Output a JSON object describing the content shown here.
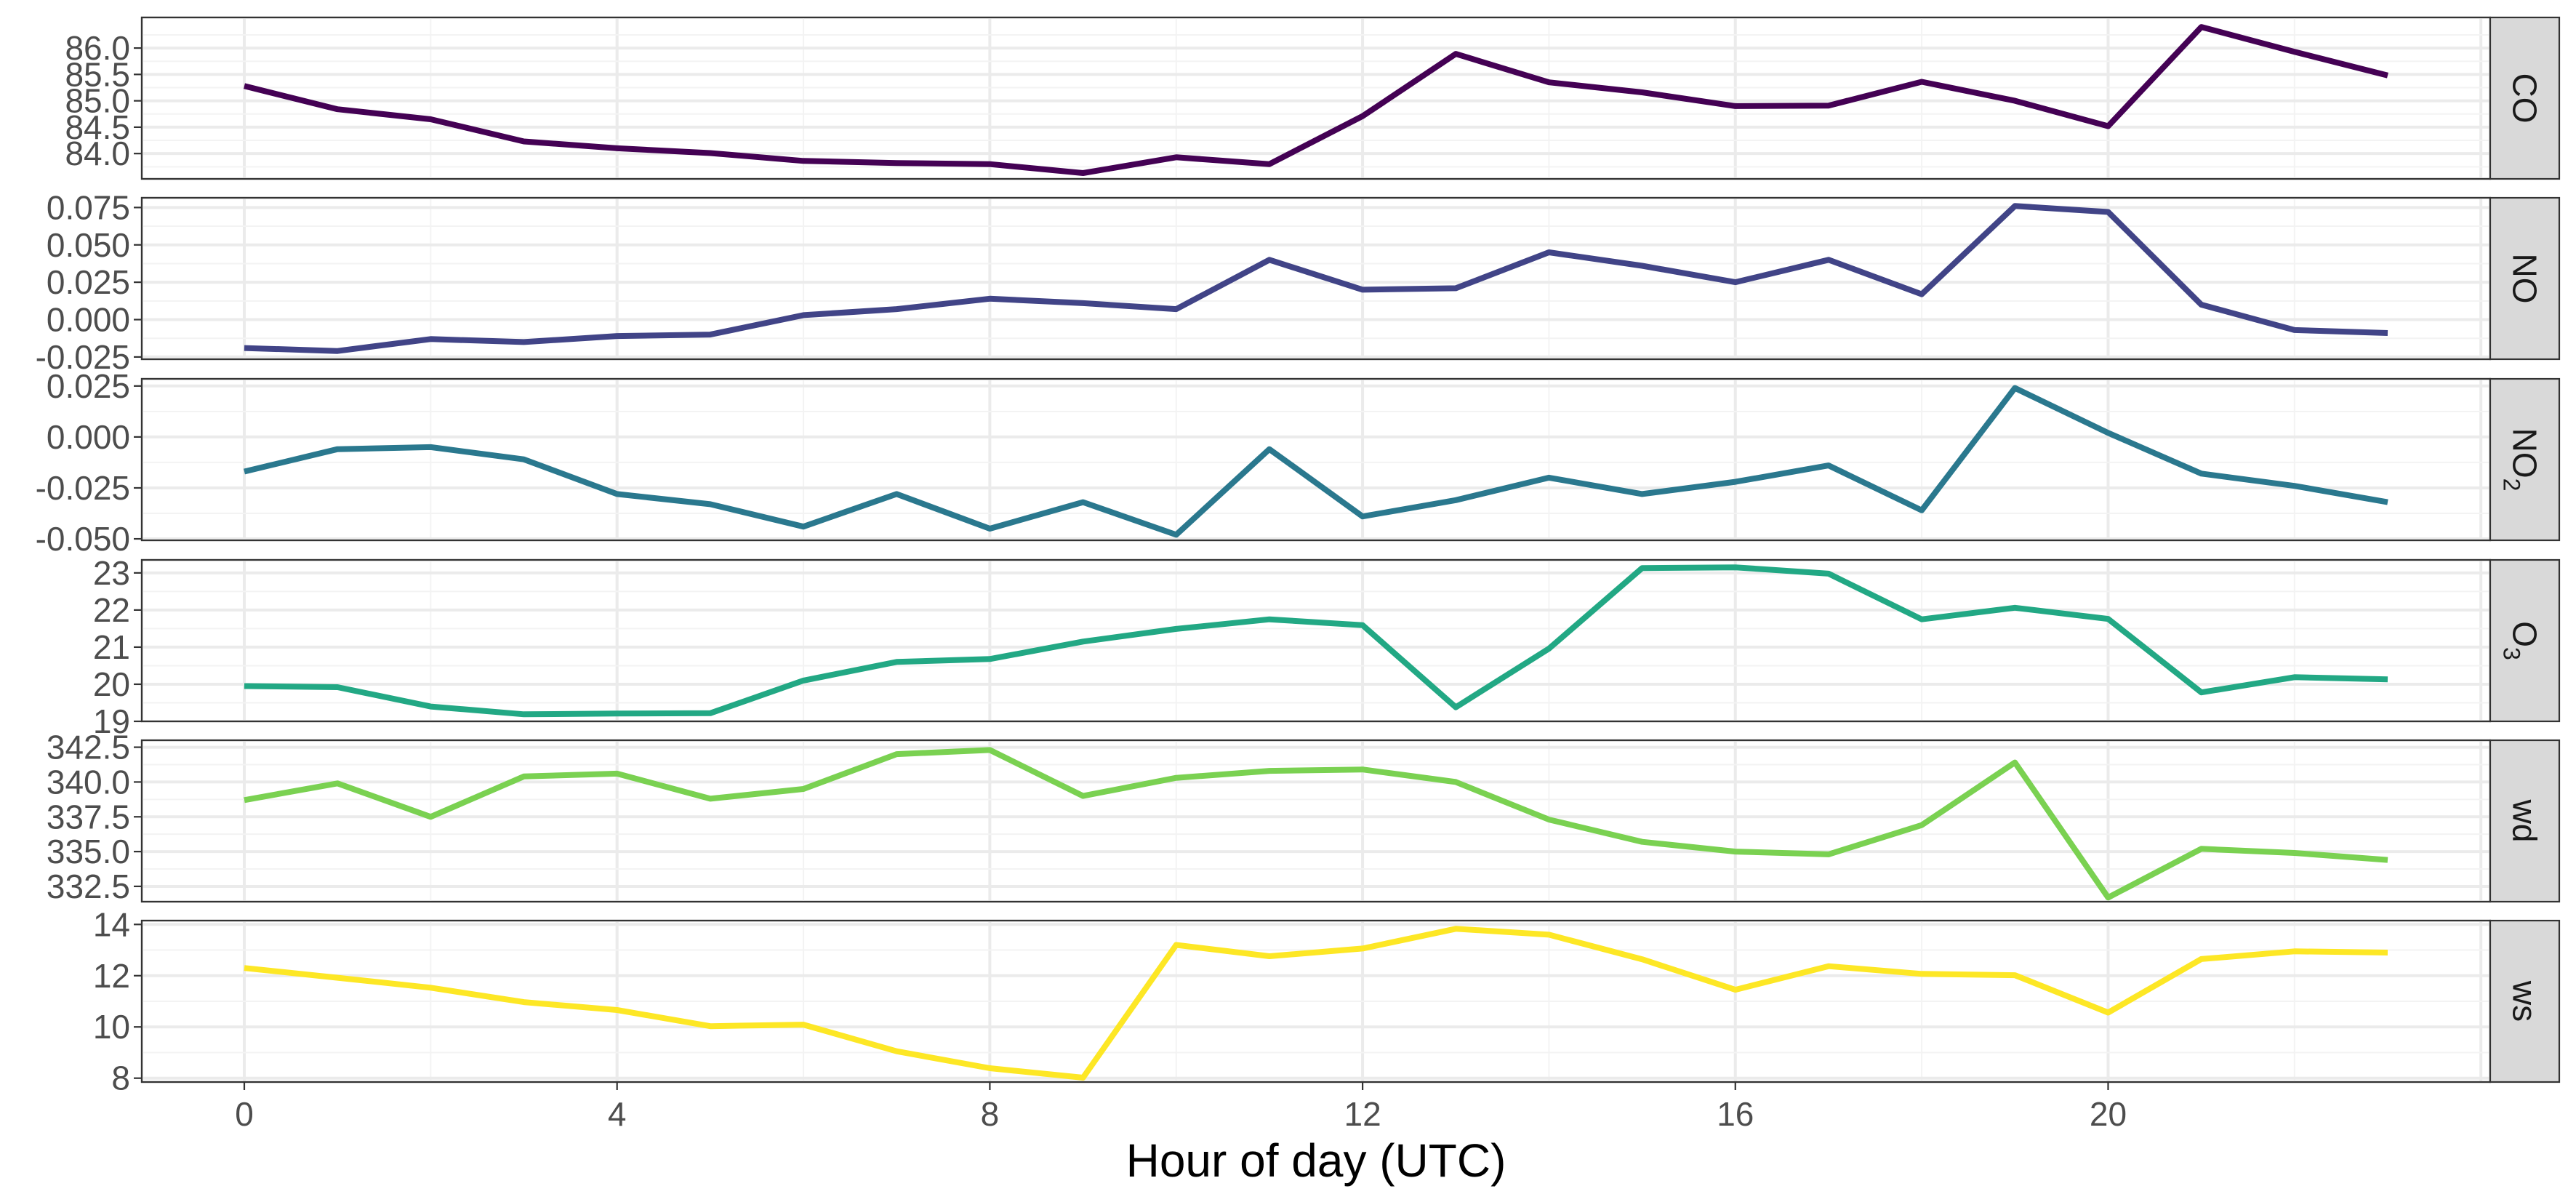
{
  "chart_data": {
    "type": "line",
    "layout": "faceted-vertical",
    "xlabel": "Hour of day (UTC)",
    "x": [
      0,
      1,
      2,
      3,
      4,
      5,
      6,
      7,
      8,
      9,
      10,
      11,
      12,
      13,
      14,
      15,
      16,
      17,
      18,
      19,
      20,
      21,
      22,
      23
    ],
    "xlim": [
      -1.1,
      24.1
    ],
    "xticks": [
      0,
      4,
      8,
      12,
      16,
      20
    ],
    "xtick_labels": [
      "0",
      "4",
      "8",
      "12",
      "16",
      "20"
    ],
    "grid": true,
    "legend": "none",
    "panels": [
      {
        "strip": "CO",
        "strip_sub": "",
        "color": "#440154",
        "ylim": [
          83.52,
          86.58
        ],
        "yticks": [
          84.0,
          84.5,
          85.0,
          85.5,
          86.0
        ],
        "ytick_labels": [
          "84.0",
          "84.5",
          "85.0",
          "85.5",
          "86.0"
        ],
        "values": [
          85.28,
          84.84,
          84.65,
          84.23,
          84.1,
          84.01,
          83.86,
          83.82,
          83.8,
          83.63,
          83.93,
          83.8,
          84.71,
          85.89,
          85.35,
          85.16,
          84.9,
          84.91,
          85.36,
          85.0,
          84.52,
          86.4,
          85.93,
          85.48
        ]
      },
      {
        "strip": "NO",
        "strip_sub": "",
        "color": "#414487",
        "ylim": [
          -0.0265,
          0.0815
        ],
        "yticks": [
          -0.025,
          0.0,
          0.025,
          0.05,
          0.075
        ],
        "ytick_labels": [
          "-0.025",
          "0.000",
          "0.025",
          "0.050",
          "0.075"
        ],
        "values": [
          -0.019,
          -0.021,
          -0.013,
          -0.015,
          -0.011,
          -0.01,
          0.003,
          0.007,
          0.014,
          0.011,
          0.007,
          0.04,
          0.02,
          0.021,
          0.045,
          0.036,
          0.025,
          0.04,
          0.017,
          0.076,
          0.072,
          0.01,
          -0.007,
          -0.009
        ]
      },
      {
        "strip": "NO",
        "strip_sub": "2",
        "color": "#2A788E",
        "ylim": [
          -0.0507,
          0.0285
        ],
        "yticks": [
          -0.05,
          -0.025,
          0.0,
          0.025
        ],
        "ytick_labels": [
          "-0.050",
          "-0.025",
          "0.000",
          "0.025"
        ],
        "values": [
          -0.017,
          -0.006,
          -0.005,
          -0.011,
          -0.028,
          -0.033,
          -0.044,
          -0.028,
          -0.045,
          -0.032,
          -0.048,
          -0.006,
          -0.039,
          -0.031,
          -0.02,
          -0.028,
          -0.022,
          -0.014,
          -0.036,
          0.024,
          0.002,
          -0.018,
          -0.024,
          -0.032
        ]
      },
      {
        "strip": "O",
        "strip_sub": "3",
        "color": "#22A884",
        "ylim": [
          19.0,
          23.35
        ],
        "yticks": [
          19,
          20,
          21,
          22,
          23
        ],
        "ytick_labels": [
          "19",
          "20",
          "21",
          "22",
          "23"
        ],
        "values": [
          19.95,
          19.92,
          19.4,
          19.19,
          19.21,
          19.22,
          20.1,
          20.6,
          20.68,
          21.15,
          21.49,
          21.75,
          21.59,
          19.38,
          20.96,
          23.13,
          23.15,
          22.98,
          21.75,
          22.06,
          21.76,
          19.78,
          20.19,
          20.13
        ]
      },
      {
        "strip": "wd",
        "strip_sub": "",
        "color": "#7AD151",
        "ylim": [
          331.4,
          343.0
        ],
        "yticks": [
          332.5,
          335.0,
          337.5,
          340.0,
          342.5
        ],
        "ytick_labels": [
          "332.5",
          "335.0",
          "337.5",
          "340.0",
          "342.5"
        ],
        "values": [
          338.7,
          339.9,
          337.5,
          340.4,
          340.6,
          338.8,
          339.5,
          342.0,
          342.3,
          339.0,
          340.3,
          340.8,
          340.9,
          340.0,
          337.3,
          335.7,
          335.0,
          334.8,
          336.9,
          341.4,
          331.7,
          335.2,
          334.9,
          334.4
        ]
      },
      {
        "strip": "ws",
        "strip_sub": "",
        "color": "#FDE725",
        "ylim": [
          7.85,
          14.15
        ],
        "yticks": [
          8,
          10,
          12,
          14
        ],
        "ytick_labels": [
          "8",
          "10",
          "12",
          "14"
        ],
        "values": [
          12.3,
          11.92,
          11.53,
          10.97,
          10.66,
          10.03,
          10.09,
          9.05,
          8.39,
          8.02,
          13.2,
          12.76,
          13.06,
          13.83,
          13.6,
          12.64,
          11.45,
          12.37,
          12.07,
          12.02,
          10.56,
          12.65,
          12.95,
          12.9
        ]
      }
    ]
  }
}
